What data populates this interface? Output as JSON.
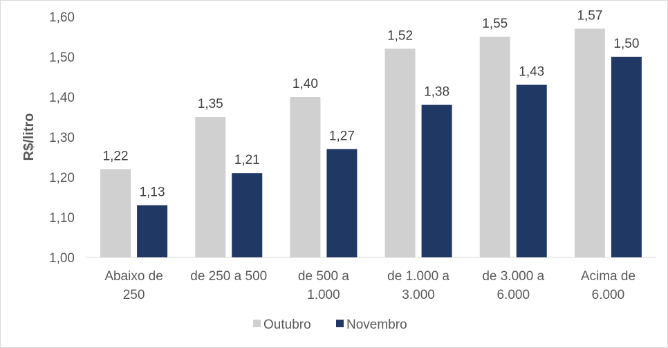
{
  "chart_data": {
    "type": "bar",
    "title": "",
    "xlabel": "",
    "ylabel": "R$/litro",
    "ylim": [
      1.0,
      1.6
    ],
    "yticks": [
      "1,00",
      "1,10",
      "1,20",
      "1,30",
      "1,40",
      "1,50",
      "1,60"
    ],
    "grid": false,
    "legend_position": "bottom",
    "categories": [
      [
        "Abaixo de",
        "250"
      ],
      [
        "de 250 a 500"
      ],
      [
        "de 500 a",
        "1.000"
      ],
      [
        "de 1.000 a",
        "3.000"
      ],
      [
        "de 3.000 a",
        "6.000"
      ],
      [
        "Acima de",
        "6.000"
      ]
    ],
    "series": [
      {
        "name": "Outubro",
        "color": "#d0d0d0",
        "values": [
          1.22,
          1.35,
          1.4,
          1.52,
          1.55,
          1.57
        ],
        "labels": [
          "1,22",
          "1,35",
          "1,40",
          "1,52",
          "1,55",
          "1,57"
        ]
      },
      {
        "name": "Novembro",
        "color": "#1f3864",
        "values": [
          1.13,
          1.21,
          1.27,
          1.38,
          1.43,
          1.5
        ],
        "labels": [
          "1,13",
          "1,21",
          "1,27",
          "1,38",
          "1,43",
          "1,50"
        ]
      }
    ]
  }
}
